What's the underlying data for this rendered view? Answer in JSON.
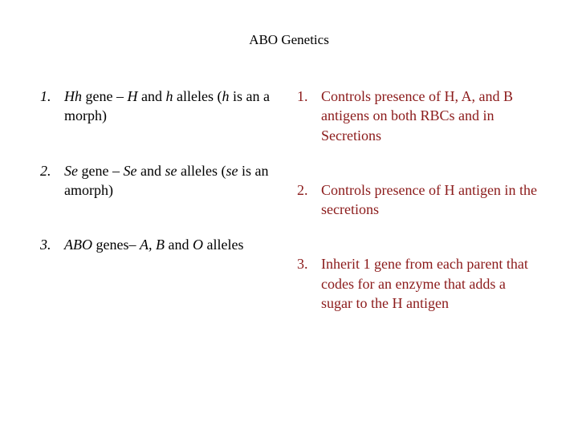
{
  "title": "ABO Genetics",
  "left_color": "#000000",
  "right_color": "#8B1A1A",
  "font_family": "Georgia, 'Times New Roman', serif",
  "title_fontsize": 17,
  "body_fontsize": 18,
  "left": {
    "n1": "1.",
    "i1_a": "Hh",
    "i1_b": " gene – ",
    "i1_c": "H",
    "i1_d": " and ",
    "i1_e": "h",
    "i1_f": " alleles (",
    "i1_g": "h",
    "i1_h": " is an a morph)",
    "n2": "2.",
    "i2_a": "Se",
    "i2_b": " gene – ",
    "i2_c": "Se",
    "i2_d": " and ",
    "i2_e": "se",
    "i2_f": " alleles (",
    "i2_g": "se",
    "i2_h": " is an amorph)",
    "n3": "3.",
    "i3_a": "ABO",
    "i3_b": " genes– ",
    "i3_c": "A, B",
    "i3_d": " and ",
    "i3_e": "O",
    "i3_f": " alleles"
  },
  "right": {
    "n1": "1.",
    "i1": "Controls presence of H, A, and B antigens on both RBCs and in Secretions",
    "n2": "2.",
    "i2": "Controls presence of H antigen in the secretions",
    "n3": "3.",
    "i3": "Inherit 1 gene from each parent that codes for an enzyme that adds a sugar to the H antigen"
  }
}
